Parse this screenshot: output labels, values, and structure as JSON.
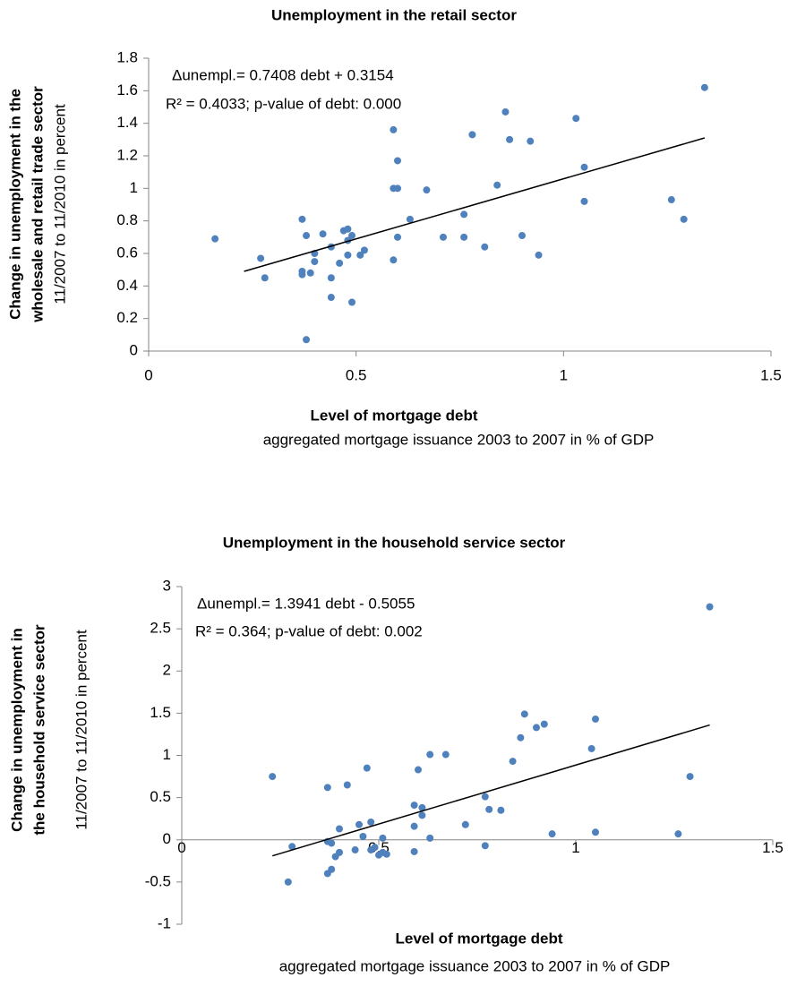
{
  "chart_data": [
    {
      "type": "scatter",
      "title": "Unemployment in the retail sector",
      "annotations": [
        "Δunempl.= 0.7408 debt + 0.3154",
        "R² = 0.4033; p-value of debt: 0.000"
      ],
      "ylabel": [
        "Change in unemployment in the",
        "wholesale and retail trade sector"
      ],
      "ylabel_note": "11/2007 to 11/2010 in percent",
      "xlabel": "Level of mortgage debt",
      "xlabel_note": "aggregated mortgage issuance 2003 to 2007 in % of GDP",
      "xlim": [
        0,
        1.5
      ],
      "xticks": [
        0,
        0.5,
        1,
        1.5
      ],
      "ylim": [
        0,
        1.8
      ],
      "yticks": [
        0,
        0.2,
        0.4,
        0.6,
        0.8,
        1,
        1.2,
        1.4,
        1.6,
        1.8
      ],
      "grid": false,
      "series": [
        {
          "color": "#4f81bd",
          "x": [
            0.16,
            0.27,
            0.28,
            0.37,
            0.37,
            0.37,
            0.38,
            0.38,
            0.39,
            0.4,
            0.4,
            0.42,
            0.44,
            0.44,
            0.44,
            0.46,
            0.47,
            0.48,
            0.48,
            0.48,
            0.49,
            0.49,
            0.51,
            0.52,
            0.59,
            0.59,
            0.59,
            0.6,
            0.6,
            0.6,
            0.63,
            0.67,
            0.71,
            0.76,
            0.76,
            0.78,
            0.81,
            0.84,
            0.86,
            0.87,
            0.9,
            0.92,
            0.94,
            1.03,
            1.05,
            1.05,
            1.26,
            1.29,
            1.34
          ],
          "values": [
            0.69,
            0.57,
            0.45,
            0.81,
            0.49,
            0.47,
            0.07,
            0.71,
            0.48,
            0.6,
            0.55,
            0.72,
            0.64,
            0.45,
            0.33,
            0.54,
            0.74,
            0.75,
            0.68,
            0.59,
            0.71,
            0.3,
            0.59,
            0.62,
            0.56,
            1.36,
            1.0,
            1.17,
            1.0,
            0.7,
            0.81,
            0.99,
            0.7,
            0.84,
            0.7,
            1.33,
            0.64,
            1.02,
            1.47,
            1.3,
            0.71,
            1.29,
            0.59,
            1.43,
            1.13,
            0.92,
            0.93,
            0.81,
            1.62
          ]
        }
      ],
      "trendline": {
        "color": "#000000",
        "x": [
          0.23,
          1.34
        ],
        "values": [
          0.49,
          1.31
        ]
      }
    },
    {
      "type": "scatter",
      "title": "Unemployment in the household service sector",
      "annotations": [
        "Δunempl.= 1.3941 debt - 0.5055",
        "R² = 0.364; p-value of debt: 0.002"
      ],
      "ylabel": [
        "Change in unemployment in",
        "the household service sector"
      ],
      "ylabel_note": "11/2007 to 11/2010 in percent",
      "xlabel": "Level of mortgage debt",
      "xlabel_note": "aggregated mortgage issuance 2003 to 2007 in % of GDP",
      "xlim": [
        0,
        1.5
      ],
      "xticks": [
        0,
        0.5,
        1,
        1.5
      ],
      "ylim": [
        -1,
        3
      ],
      "yticks": [
        -1,
        -0.5,
        0,
        0.5,
        1,
        1.5,
        2,
        2.5,
        3
      ],
      "grid": false,
      "series": [
        {
          "color": "#4f81bd",
          "x": [
            0.23,
            0.27,
            0.28,
            0.37,
            0.37,
            0.37,
            0.38,
            0.38,
            0.39,
            0.4,
            0.4,
            0.42,
            0.44,
            0.45,
            0.46,
            0.47,
            0.48,
            0.48,
            0.49,
            0.5,
            0.51,
            0.51,
            0.52,
            0.59,
            0.59,
            0.59,
            0.6,
            0.61,
            0.61,
            0.63,
            0.63,
            0.67,
            0.72,
            0.77,
            0.77,
            0.78,
            0.81,
            0.84,
            0.86,
            0.87,
            0.9,
            0.92,
            0.94,
            1.04,
            1.05,
            1.05,
            1.26,
            1.29,
            1.34
          ],
          "values": [
            0.75,
            -0.5,
            -0.08,
            0.62,
            -0.4,
            -0.02,
            -0.35,
            -0.04,
            -0.2,
            -0.15,
            0.13,
            0.65,
            -0.12,
            0.18,
            0.04,
            0.85,
            0.21,
            -0.12,
            -0.09,
            -0.18,
            0.02,
            -0.15,
            -0.17,
            0.41,
            0.16,
            -0.14,
            0.83,
            0.38,
            0.29,
            1.01,
            0.02,
            1.01,
            0.18,
            0.51,
            -0.07,
            0.36,
            0.35,
            0.93,
            1.21,
            1.49,
            1.33,
            1.37,
            0.07,
            1.08,
            1.43,
            0.09,
            0.07,
            0.75,
            2.76
          ]
        }
      ],
      "trendline": {
        "color": "#000000",
        "x": [
          0.23,
          1.34
        ],
        "values": [
          -0.19,
          1.36
        ]
      }
    }
  ]
}
